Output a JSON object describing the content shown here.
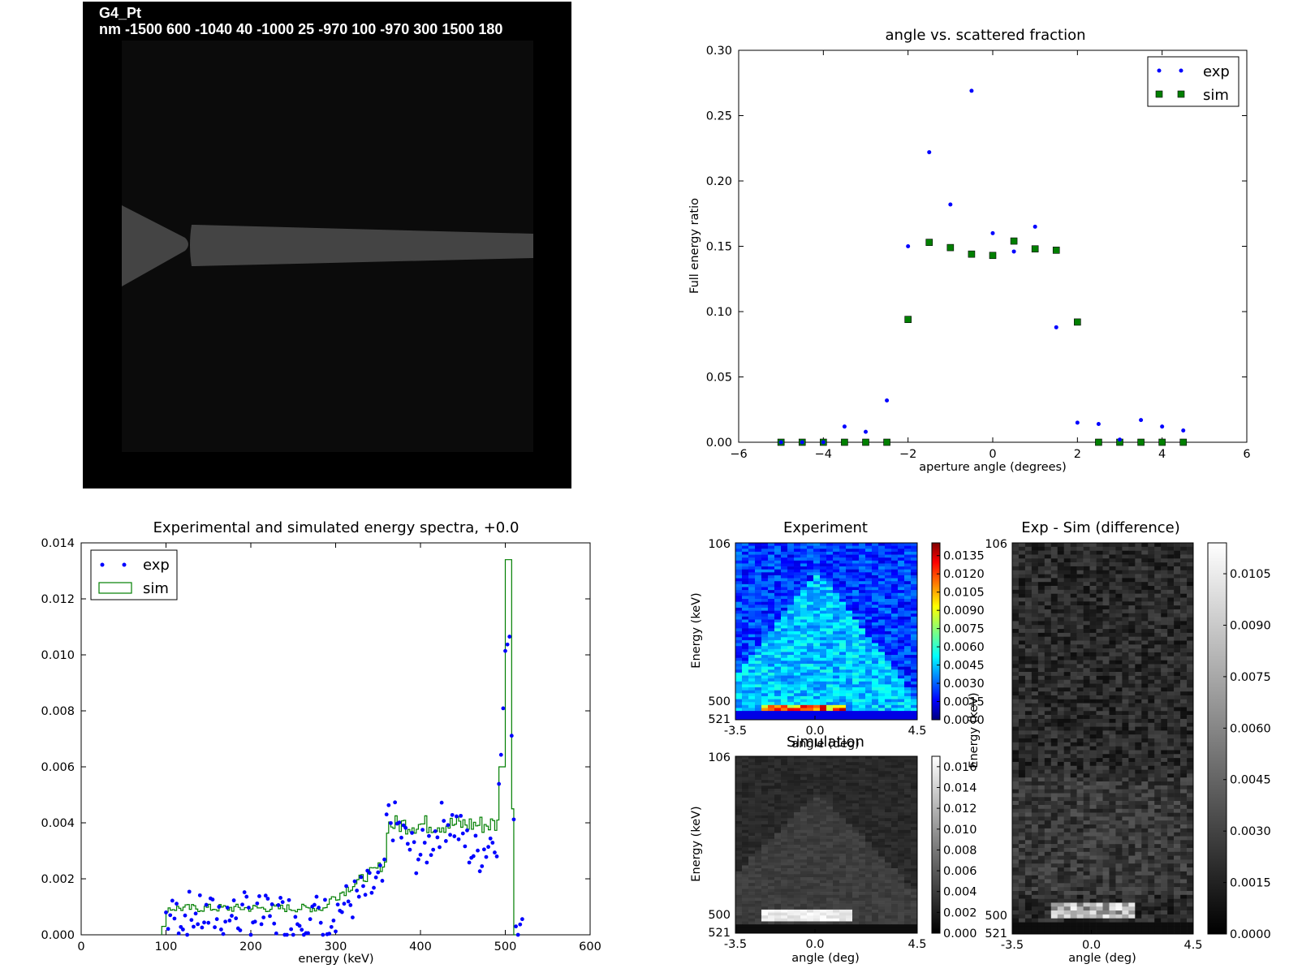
{
  "geometry_panel": {
    "header_line1": "G4_Pt",
    "header_line2": "nm -1500 600 -1040 40 -1000 25 -970 100 -970 300 1500 180"
  },
  "chart_data": [
    {
      "type": "scatter",
      "title": "angle vs. scattered fraction",
      "xlabel": "aperture angle (degrees)",
      "ylabel": "Full energy ratio",
      "xlim": [
        -6,
        6
      ],
      "ylim": [
        0,
        0.3
      ],
      "xticks": [
        "−6",
        "−4",
        "−2",
        "0",
        "2",
        "4",
        "6"
      ],
      "yticks": [
        "0.00",
        "0.05",
        "0.10",
        "0.15",
        "0.20",
        "0.25",
        "0.30"
      ],
      "legend": "top-right",
      "series": [
        {
          "name": "exp",
          "color": "#0000ff",
          "marker": "dot",
          "x": [
            -5,
            -4.5,
            -4,
            -3.5,
            -3,
            -2.5,
            -2,
            -1.5,
            -1,
            -0.5,
            0,
            0.5,
            1,
            1.5,
            2,
            2.5,
            3,
            3.5,
            4,
            4.5
          ],
          "y": [
            0,
            0,
            0,
            0.012,
            0.008,
            0.032,
            0.15,
            0.222,
            0.182,
            0.269,
            0.16,
            0.146,
            0.165,
            0.088,
            0.015,
            0.014,
            0.002,
            0.017,
            0.012,
            0.009
          ]
        },
        {
          "name": "sim",
          "color": "#007f00",
          "marker": "square",
          "x": [
            -5,
            -4.5,
            -4,
            -3.5,
            -3,
            -2.5,
            -2,
            -1.5,
            -1,
            -0.5,
            0,
            0.5,
            1,
            1.5,
            2,
            2.5,
            3,
            3.5,
            4,
            4.5
          ],
          "y": [
            0,
            0,
            0,
            0,
            0,
            0,
            0.094,
            0.153,
            0.149,
            0.144,
            0.143,
            0.154,
            0.148,
            0.147,
            0.092,
            0,
            0,
            0,
            0,
            0
          ]
        }
      ]
    },
    {
      "type": "line",
      "title": "Experimental and simulated energy spectra, +0.0",
      "xlabel": "energy (keV)",
      "ylabel": "",
      "xlim": [
        0,
        600
      ],
      "ylim": [
        0,
        0.014
      ],
      "xticks": [
        "0",
        "100",
        "200",
        "300",
        "400",
        "500",
        "600"
      ],
      "yticks": [
        "0.000",
        "0.002",
        "0.004",
        "0.006",
        "0.008",
        "0.010",
        "0.012",
        "0.014"
      ],
      "legend": "top-left",
      "series": [
        {
          "name": "exp",
          "color": "#0000ff",
          "marker": "dot",
          "x": [],
          "y": []
        },
        {
          "name": "sim",
          "color": "#007f00",
          "style": "step",
          "x": [],
          "y": []
        }
      ]
    },
    {
      "type": "heatmap",
      "title": "Experiment",
      "xlabel": "angle (deg)",
      "ylabel": "Energy (keV)",
      "xticks": [
        "-3.5",
        "0.0",
        "4.5"
      ],
      "yticks": [
        "106",
        "500",
        "521"
      ],
      "colormap": "jet",
      "colorbar_ticks": [
        "0.0000",
        "0.0015",
        "0.0030",
        "0.0045",
        "0.0060",
        "0.0075",
        "0.0090",
        "0.0105",
        "0.0120",
        "0.0135"
      ]
    },
    {
      "type": "heatmap",
      "title": "Simulation",
      "xlabel": "angle (deg)",
      "ylabel": "Energy (keV)",
      "xticks": [
        "-3.5",
        "0.0",
        "4.5"
      ],
      "yticks": [
        "106",
        "500",
        "521"
      ],
      "colormap": "gray",
      "colorbar_ticks": [
        "0.000",
        "0.002",
        "0.004",
        "0.006",
        "0.008",
        "0.010",
        "0.012",
        "0.014",
        "0.016"
      ]
    },
    {
      "type": "heatmap",
      "title": "Exp - Sim (difference)",
      "xlabel": "angle (deg)",
      "ylabel": "Energy (keV)",
      "xticks": [
        "-3.5",
        "0.0",
        "4.5"
      ],
      "yticks": [
        "106",
        "500",
        "521"
      ],
      "colormap": "gray",
      "colorbar_ticks": [
        "0.0000",
        "0.0015",
        "0.0030",
        "0.0045",
        "0.0060",
        "0.0075",
        "0.0090",
        "0.0105"
      ]
    }
  ]
}
